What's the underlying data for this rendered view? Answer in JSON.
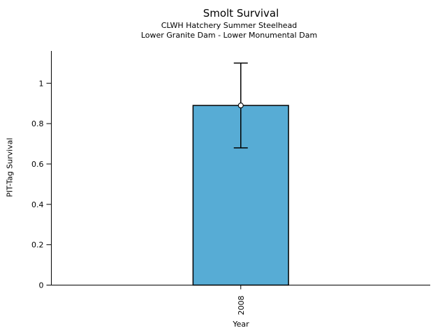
{
  "chart_data": {
    "type": "bar",
    "title": "Smolt Survival",
    "subtitle1": "CLWH Hatchery Summer Steelhead",
    "subtitle2": "Lower Granite Dam - Lower Monumental Dam",
    "xlabel": "Year",
    "ylabel": "PIT-Tag Survival",
    "categories": [
      "2008"
    ],
    "values": [
      0.89
    ],
    "error_low": [
      0.68
    ],
    "error_high": [
      1.1
    ],
    "yticks": [
      0,
      0.2,
      0.4,
      0.6,
      0.8,
      1
    ],
    "ytick_labels": [
      "0",
      "0.2",
      "0.4",
      "0.6",
      "0.8",
      "1"
    ],
    "ylim": [
      0,
      1.16
    ],
    "grid": false,
    "legend": null,
    "marker": "open-circle",
    "colors": {
      "bar_fill": "#57ACD5",
      "bar_edge": "#000000",
      "error_bar": "#000000",
      "marker_fill": "#ffffff",
      "marker_edge": "#000000",
      "axis": "#000000",
      "text": "#000000",
      "background": "#ffffff"
    }
  }
}
